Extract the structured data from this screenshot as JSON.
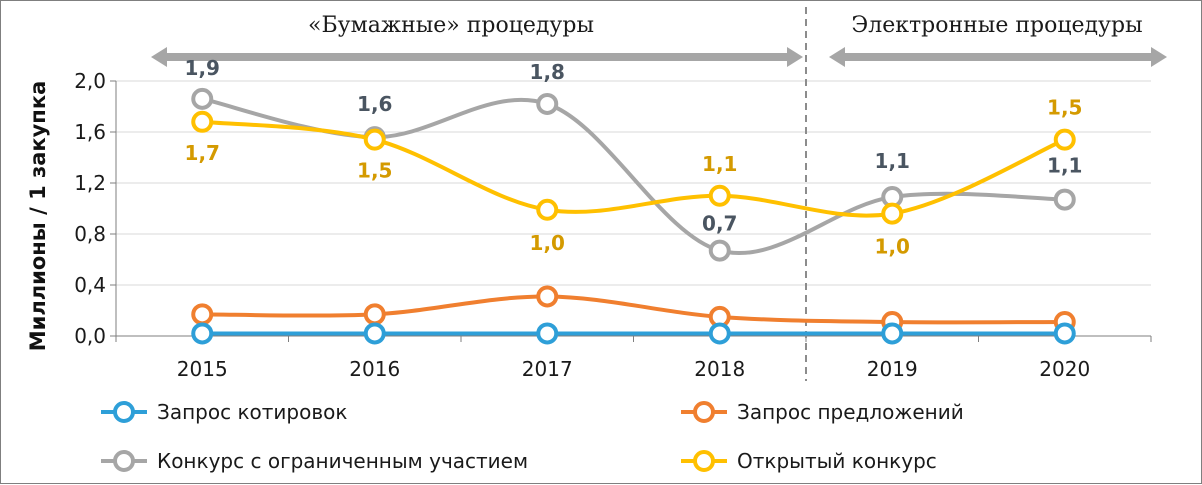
{
  "chart_data": {
    "type": "line",
    "ylabel": "Миллионы / 1 закупка",
    "categories": [
      "2015",
      "2016",
      "2017",
      "2018",
      "2019",
      "2020"
    ],
    "ylim": [
      0,
      2.0
    ],
    "yticks": [
      "0,0",
      "0,4",
      "0,8",
      "1,2",
      "1,6",
      "2,0"
    ],
    "grid": true,
    "legend_position": "bottom",
    "periods": [
      {
        "label": "«Бумажные» процедуры",
        "from": "2015",
        "to": "2018"
      },
      {
        "label": "Электронные процедуры",
        "from": "2019",
        "to": "2020"
      }
    ],
    "series": [
      {
        "name": "Запрос котировок",
        "color": "#2e9fd8",
        "values": [
          0.02,
          0.02,
          0.02,
          0.02,
          0.02,
          0.02
        ],
        "labels": [
          "",
          "",
          "",
          "",
          "",
          ""
        ]
      },
      {
        "name": "Запрос предложений",
        "color": "#f07f2f",
        "values": [
          0.17,
          0.17,
          0.31,
          0.15,
          0.11,
          0.11
        ],
        "labels": [
          "",
          "",
          "",
          "",
          "",
          ""
        ]
      },
      {
        "name": "Конкурс с ограниченным участием",
        "color": "#a6a6a6",
        "label_color": "#4a5561",
        "values": [
          1.86,
          1.56,
          1.82,
          0.67,
          1.09,
          1.07
        ],
        "labels": [
          "1,9",
          "1,6",
          "1,8",
          "0,7",
          "1,1",
          "1,1"
        ]
      },
      {
        "name": "Открытый конкурс",
        "color": "#ffc000",
        "label_color": "#d49a00",
        "values": [
          1.68,
          1.54,
          0.99,
          1.1,
          0.96,
          1.54
        ],
        "labels": [
          "1,7",
          "1,5",
          "1,0",
          "1,1",
          "1,0",
          "1,5"
        ]
      }
    ]
  }
}
